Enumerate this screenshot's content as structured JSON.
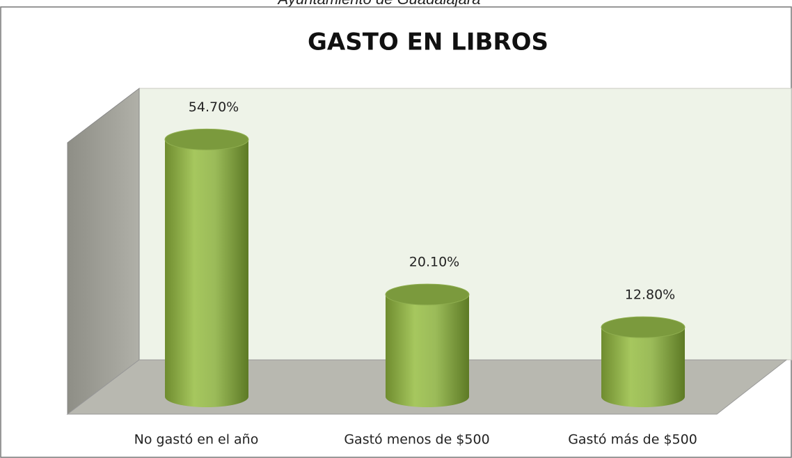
{
  "header": "Ayuntamiento de Guadalajara",
  "chart_data": {
    "type": "bar",
    "title": "GASTO EN LIBROS",
    "categories": [
      "No gastó en el año",
      "Gastó menos de $500",
      "Gastó más de $500"
    ],
    "values": [
      54.7,
      20.1,
      12.8
    ],
    "value_labels": [
      "54.70%",
      "20.10%",
      "12.80%"
    ],
    "color": "#9bbb59"
  }
}
